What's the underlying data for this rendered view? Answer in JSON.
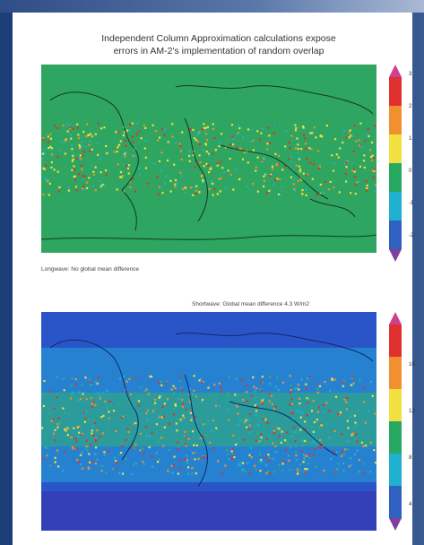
{
  "title_lines": [
    "Independent Column Approximation calculations expose",
    "errors in AM-2's implementation of random overlap"
  ],
  "maps": [
    {
      "caption": "Longwave: No global mean difference",
      "caption_position": "below-left",
      "colorbar_ticks": [
        "3",
        "2",
        "1",
        "0",
        "-1",
        "-2"
      ],
      "colorbar_colors": [
        "#d04090",
        "#e03030",
        "#f09030",
        "#f0e040",
        "#28a860",
        "#20b0d0",
        "#3060c0",
        "#8040a0"
      ],
      "dominant_color": "#2ea560"
    },
    {
      "caption": "Shortwave: Global mean difference 4.3 W/m2",
      "caption_position": "above-right",
      "colorbar_ticks": [
        "16",
        "12",
        "8",
        "4"
      ],
      "colorbar_colors": [
        "#d04090",
        "#e03030",
        "#f09030",
        "#f0e040",
        "#28a860",
        "#20b0d0",
        "#3060c0",
        "#8040a0"
      ],
      "dominant_color": "#2a55c8"
    }
  ]
}
